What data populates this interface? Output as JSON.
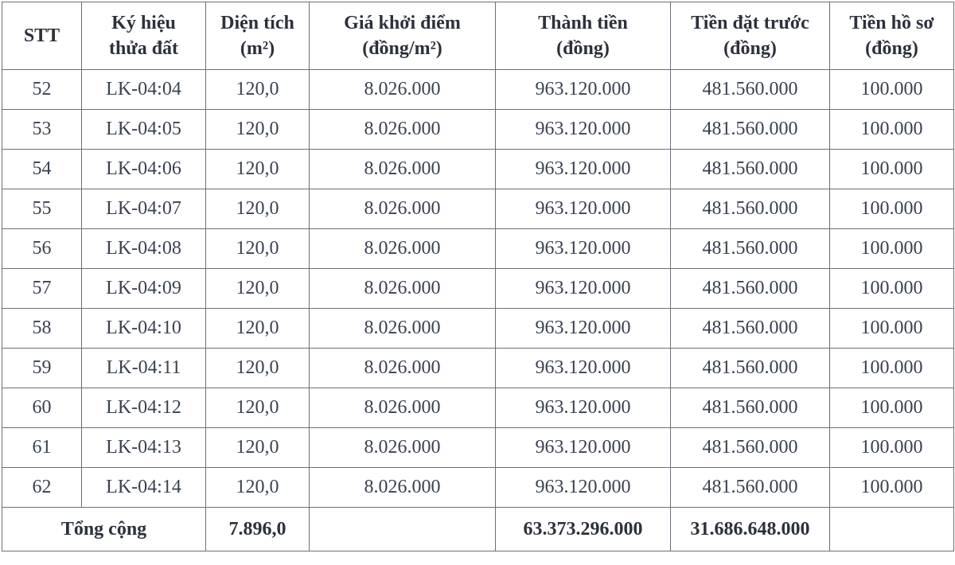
{
  "table": {
    "header": [
      [
        "STT"
      ],
      [
        "Ký hiệu",
        "thửa đất"
      ],
      [
        "Diện tích",
        "(m²)"
      ],
      [
        "Giá khởi điểm",
        "(đồng/m²)"
      ],
      [
        "Thành tiền",
        "(đồng)"
      ],
      [
        "Tiền đặt trước",
        "(đồng)"
      ],
      [
        "Tiền hồ sơ",
        "(đồng)"
      ]
    ],
    "rows": [
      [
        "52",
        "LK-04:04",
        "120,0",
        "8.026.000",
        "963.120.000",
        "481.560.000",
        "100.000"
      ],
      [
        "53",
        "LK-04:05",
        "120,0",
        "8.026.000",
        "963.120.000",
        "481.560.000",
        "100.000"
      ],
      [
        "54",
        "LK-04:06",
        "120,0",
        "8.026.000",
        "963.120.000",
        "481.560.000",
        "100.000"
      ],
      [
        "55",
        "LK-04:07",
        "120,0",
        "8.026.000",
        "963.120.000",
        "481.560.000",
        "100.000"
      ],
      [
        "56",
        "LK-04:08",
        "120,0",
        "8.026.000",
        "963.120.000",
        "481.560.000",
        "100.000"
      ],
      [
        "57",
        "LK-04:09",
        "120,0",
        "8.026.000",
        "963.120.000",
        "481.560.000",
        "100.000"
      ],
      [
        "58",
        "LK-04:10",
        "120,0",
        "8.026.000",
        "963.120.000",
        "481.560.000",
        "100.000"
      ],
      [
        "59",
        "LK-04:11",
        "120,0",
        "8.026.000",
        "963.120.000",
        "481.560.000",
        "100.000"
      ],
      [
        "60",
        "LK-04:12",
        "120,0",
        "8.026.000",
        "963.120.000",
        "481.560.000",
        "100.000"
      ],
      [
        "61",
        "LK-04:13",
        "120,0",
        "8.026.000",
        "963.120.000",
        "481.560.000",
        "100.000"
      ],
      [
        "62",
        "LK-04:14",
        "120,0",
        "8.026.000",
        "963.120.000",
        "481.560.000",
        "100.000"
      ]
    ],
    "total": {
      "label": "Tổng cộng",
      "area": "7.896,0",
      "amount": "63.373.296.000",
      "deposit": "31.686.648.000"
    }
  }
}
